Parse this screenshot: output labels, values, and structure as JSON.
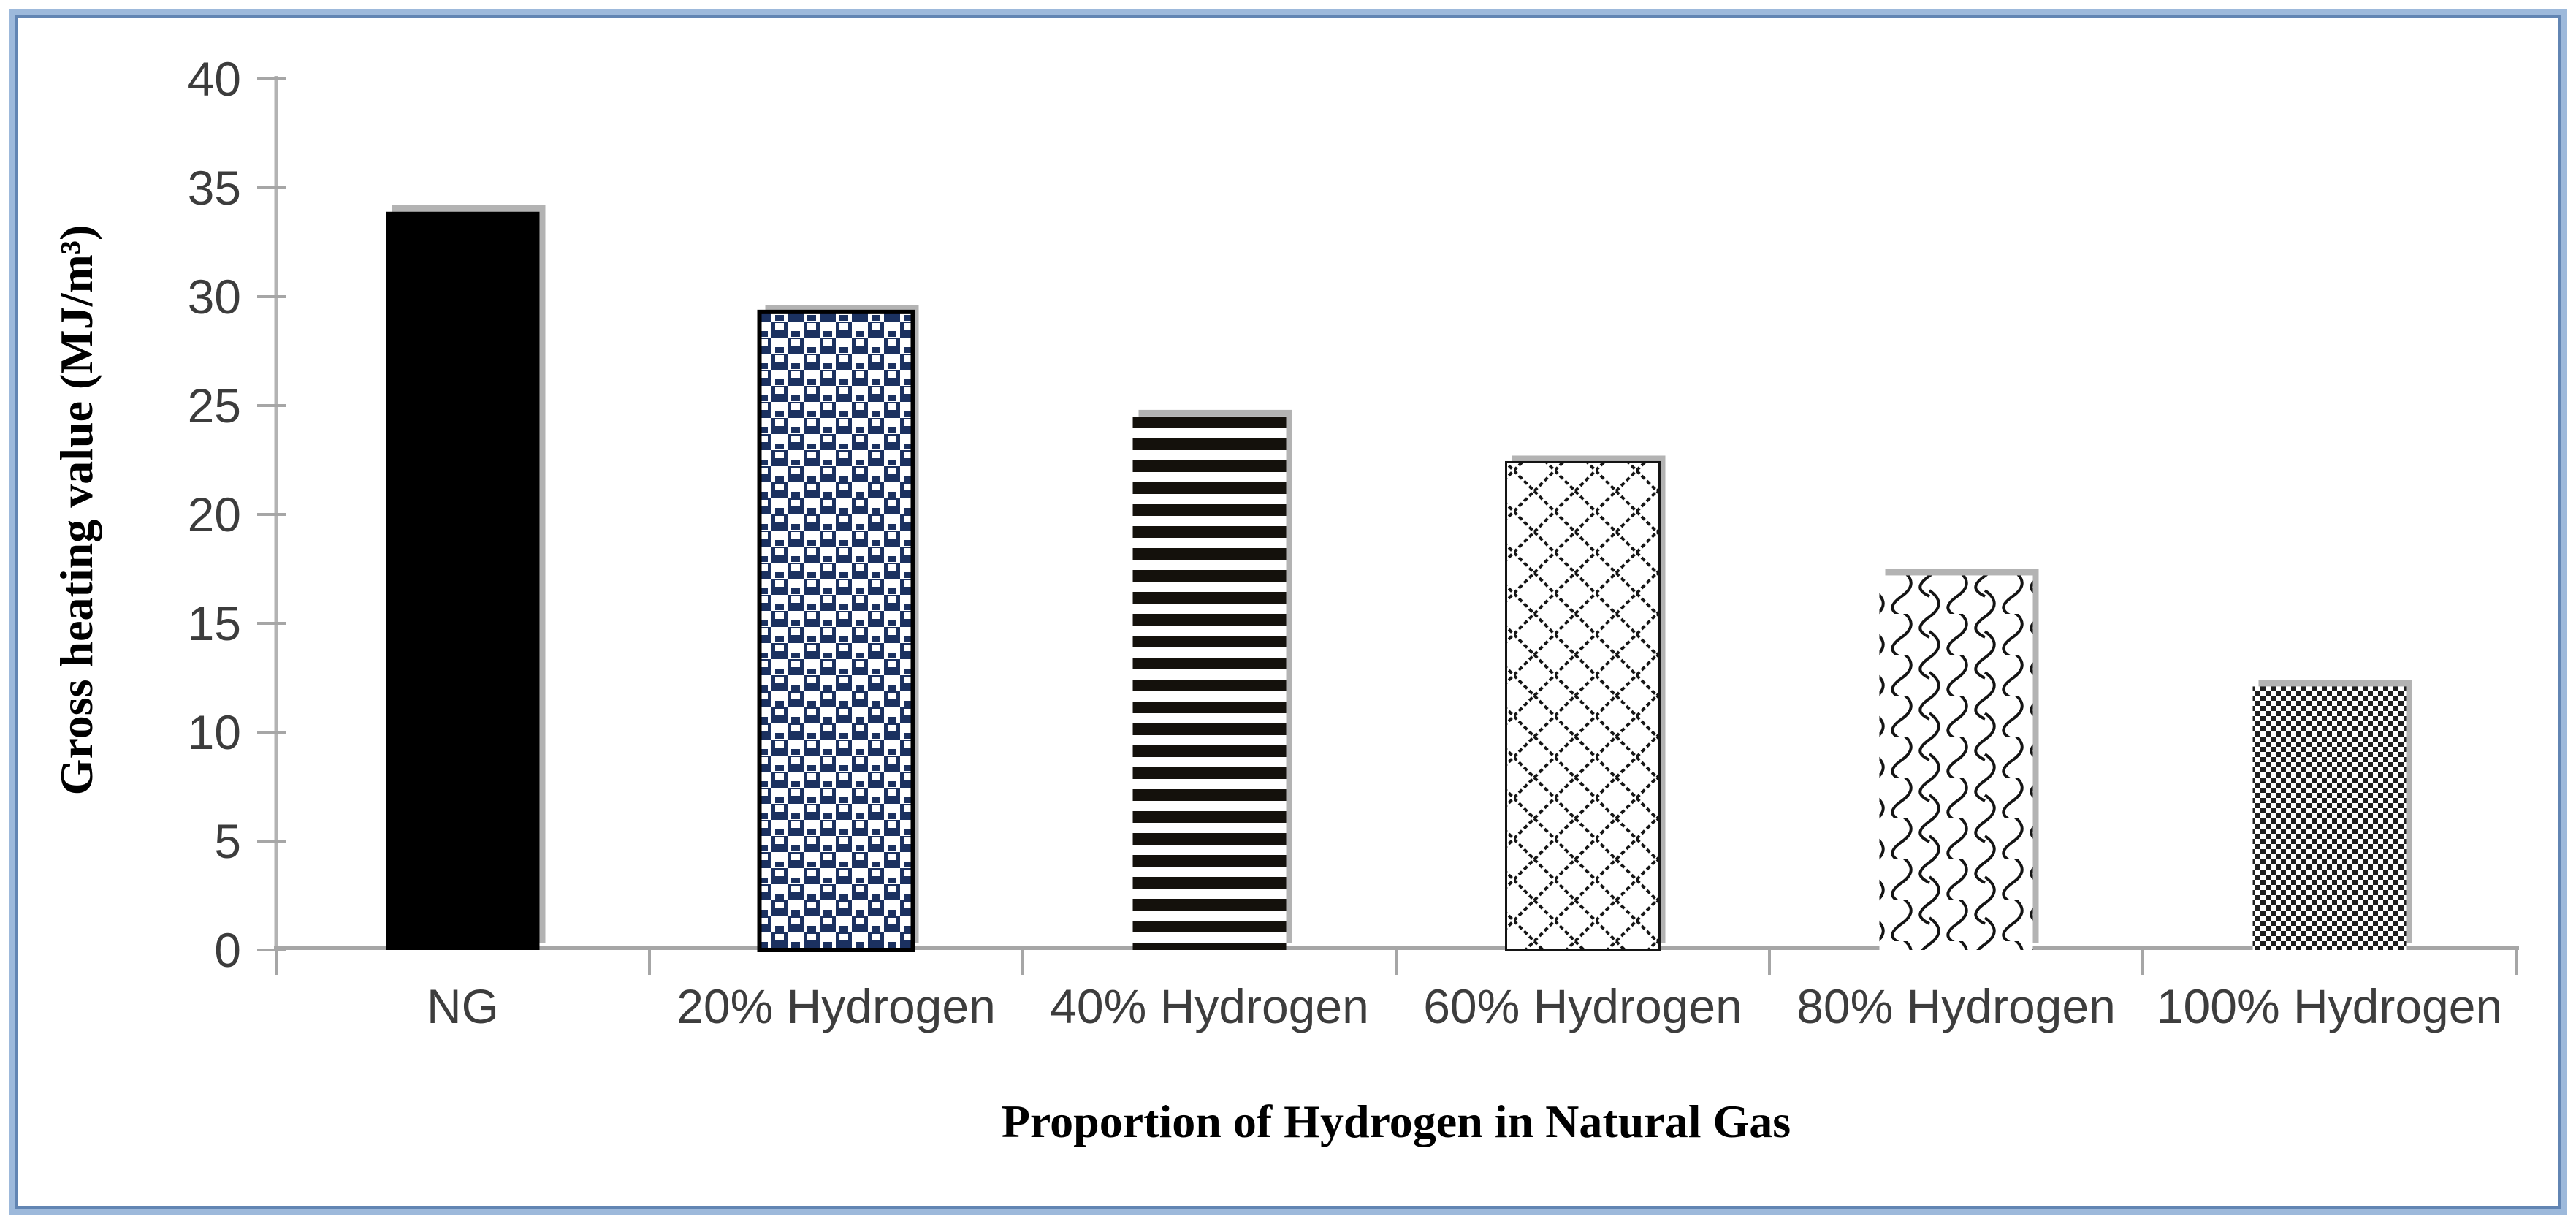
{
  "chart_data": {
    "type": "bar",
    "title": "",
    "categories": [
      "NG",
      "20% Hydrogen",
      "40% Hydrogen",
      "60% Hydrogen",
      "80% Hydrogen",
      "100% Hydrogen"
    ],
    "values": [
      33.9,
      29.3,
      24.5,
      22.4,
      17.2,
      12.1
    ],
    "xlabel": "Proportion of Hydrogen in Natural Gas",
    "ylabel": "Gross heating value (MJ/m³)",
    "ylim": [
      0,
      40
    ],
    "ytick_step": 5,
    "yticks": [
      0,
      5,
      10,
      15,
      20,
      25,
      30,
      35,
      40
    ],
    "grid": false,
    "legend": "none",
    "bar_patterns": [
      "solid-black",
      "navy-dotted-checker",
      "horizontal-stripes",
      "diagonal-dotted-lattice",
      "wave-scales",
      "fine-checker"
    ],
    "colors": {
      "bar_black": "#000000",
      "bar_navy": "#1b3160",
      "pattern_ink": "#161616",
      "axis_gray": "#a6a6a6",
      "bar_shadow_gray": "#b3b3b3",
      "frame_blue_light": "#9db9db",
      "frame_blue_dark": "#6285b3",
      "tick_label_gray": "#3c3c3c"
    }
  }
}
